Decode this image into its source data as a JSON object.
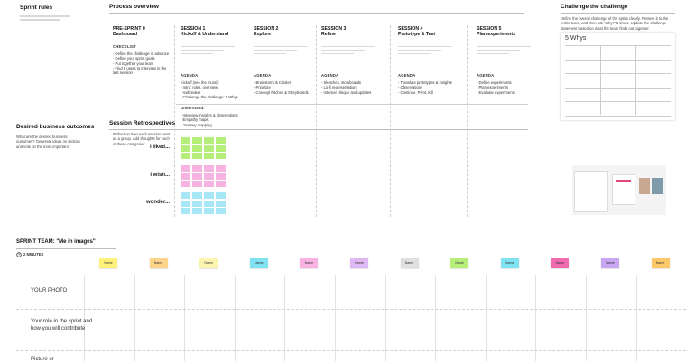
{
  "sprint_rules": {
    "title": "Sprint rules"
  },
  "process_overview": {
    "title": "Process overview",
    "columns": [
      {
        "label": "PRE-SPRINT 0",
        "title": "Dashboard",
        "sections": [
          {
            "heading": "CHECKLIST",
            "items": [
              "- Define the challenge in advance",
              "- Define your sprint goals",
              "- Put together your team",
              "- Find 5 users to interview in the",
              "last session"
            ]
          }
        ]
      },
      {
        "label": "SESSION 1",
        "title": "Kickoff & Understand",
        "sections": [
          {
            "heading": "AGENDA",
            "items": [
              "Kickoff (see the mural):",
              "- Intro: roles, overview",
              "- Icebreaker",
              "- Challenge the challenge: 5 Whys"
            ]
          },
          {
            "heading": "Understand:",
            "items": [
              "- Interview insights & observations",
              "- Empathy maps",
              "- Journey mapping"
            ]
          }
        ]
      },
      {
        "label": "SESSION 2",
        "title": "Explore",
        "sections": [
          {
            "heading": "AGENDA",
            "items": [
              "- Brainstorm & Cluster",
              "- Prioritize",
              "- Concept Pitches & Storyboards"
            ]
          }
        ]
      },
      {
        "label": "SESSION 3",
        "title": "Refine",
        "sections": [
          {
            "heading": "AGENDA",
            "items": [
              "- Sketches, storyboards",
              "- Lo-fi representation",
              "- Internal critique and updates"
            ]
          }
        ]
      },
      {
        "label": "SESSION 4",
        "title": "Prototype & Test",
        "sections": [
          {
            "heading": "AGENDA",
            "items": [
              "- Translate prototypes & insights",
              "- Observations",
              "- Continue, Pivot, Kill"
            ]
          }
        ]
      },
      {
        "label": "SESSION 5",
        "title": "Plan experiments",
        "sections": [
          {
            "heading": "AGENDA",
            "items": [
              "- Define experiments",
              "- Plan experiments",
              "- Evaluate experiments"
            ]
          }
        ]
      }
    ]
  },
  "retrospectives": {
    "title": "Session Retrospectives",
    "description": "Reflect on how each session went as a group. Add thoughts for each of these categories:",
    "categories": [
      {
        "label": "I liked...",
        "color": "#b5ef7a"
      },
      {
        "label": "I wish...",
        "color": "#f7b3e0"
      },
      {
        "label": "I wonder...",
        "color": "#a6e6f5"
      }
    ]
  },
  "business_outcomes": {
    "title": "Desired business outcomes",
    "description": "What are the desired business outcomes? Generate ideas on stickies and vote on the most important"
  },
  "challenge": {
    "title": "Challenge the challenge",
    "description": "Define the overall challenge of the sprint clearly. Present it to the entire team, and then ask 'Why?' 5 times. Update the challenge statement based on what the team finds out together.",
    "card_title": "5 Whys"
  },
  "team": {
    "title": "SPRINT TEAM: \"Me in images\"",
    "timer": "2 MINUTES",
    "members": [
      {
        "name": "Name",
        "color": "#fef27a"
      },
      {
        "name": "Name",
        "color": "#fdd48a"
      },
      {
        "name": "Name",
        "color": "#fcf5b0"
      },
      {
        "name": "Name",
        "color": "#7fe3f2"
      },
      {
        "name": "Name",
        "color": "#f9b3e3"
      },
      {
        "name": "Name",
        "color": "#ddb8f2"
      },
      {
        "name": "Name",
        "color": "#e0e0e0"
      },
      {
        "name": "Name",
        "color": "#b5ef7a"
      },
      {
        "name": "Name",
        "color": "#7fe3f2"
      },
      {
        "name": "Name",
        "color": "#f06bb0"
      },
      {
        "name": "Name",
        "color": "#c9a6f2"
      },
      {
        "name": "Name",
        "color": "#fdc86a"
      }
    ],
    "rows": [
      "YOUR PHOTO",
      "Your role in the sprint and how you will contribute",
      "Picture or"
    ]
  }
}
